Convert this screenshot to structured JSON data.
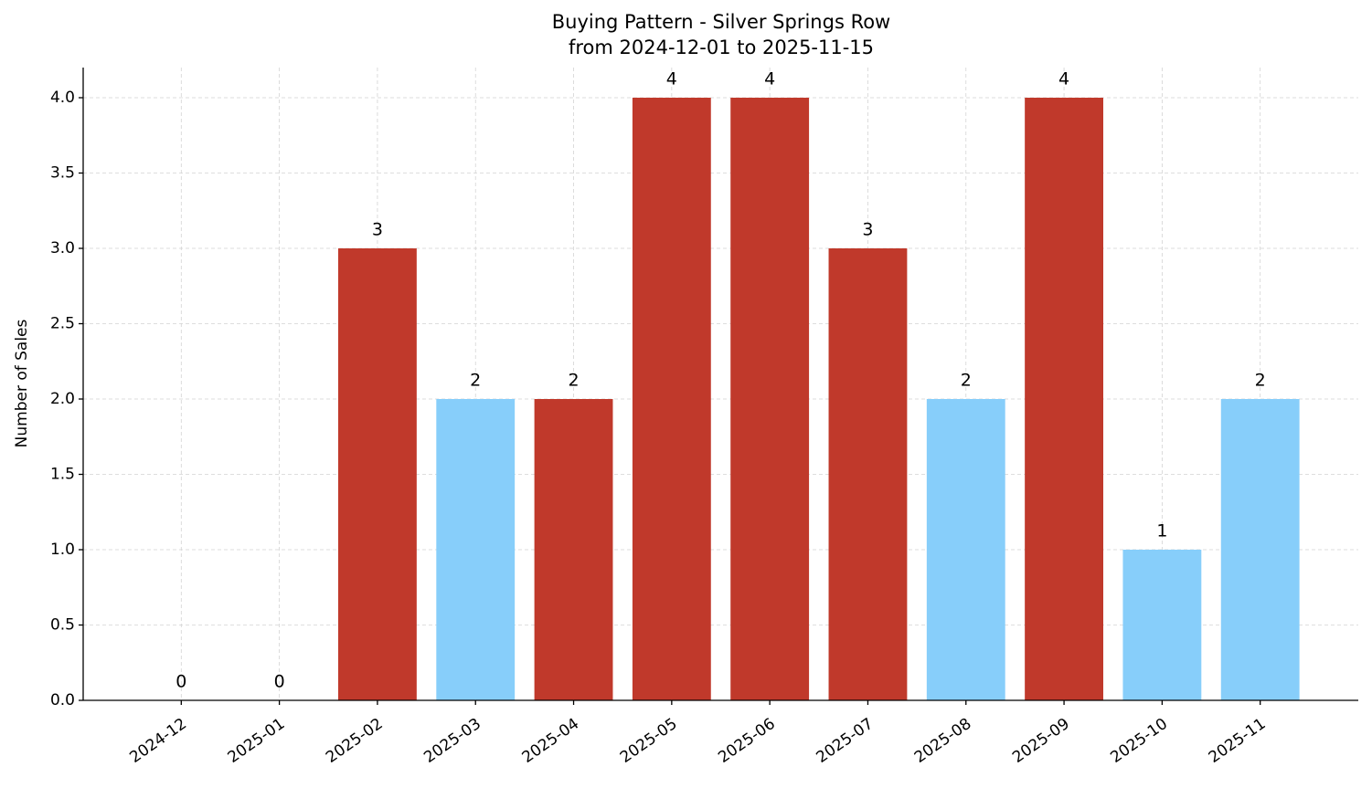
{
  "chart_data": {
    "type": "bar",
    "title": "Buying Pattern - Silver Springs Row",
    "subtitle": "from 2024-12-01 to 2025-11-15",
    "y_label": "Number of Sales",
    "categories": [
      "2024-12",
      "2025-01",
      "2025-02",
      "2025-03",
      "2025-04",
      "2025-05",
      "2025-06",
      "2025-07",
      "2025-08",
      "2025-09",
      "2025-10",
      "2025-11"
    ],
    "values": [
      0,
      0,
      3,
      2,
      2,
      4,
      4,
      3,
      2,
      4,
      1,
      2
    ],
    "colors": [
      "#c0392b",
      "#c0392b",
      "#c0392b",
      "#87cefa",
      "#c0392b",
      "#c0392b",
      "#c0392b",
      "#c0392b",
      "#87cefa",
      "#c0392b",
      "#87cefa",
      "#87cefa"
    ],
    "ylim": [
      0,
      4.2
    ],
    "yticks": [
      {
        "value": 0,
        "label": "0.0"
      },
      0.5,
      {
        "value": 1,
        "label": "1.0"
      },
      1.5,
      {
        "value": 2,
        "label": "2.0"
      },
      2.5,
      {
        "value": 3,
        "label": "3.0"
      },
      3.5,
      {
        "value": 4,
        "label": "4.0"
      }
    ],
    "grid": true
  }
}
